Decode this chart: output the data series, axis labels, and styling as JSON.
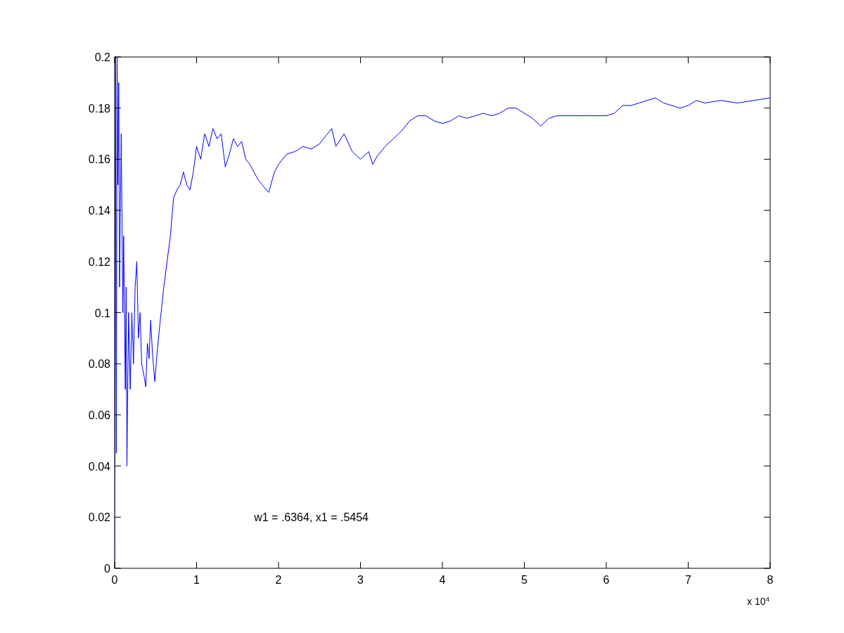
{
  "chart_data": {
    "type": "line",
    "xlim": [
      0,
      8
    ],
    "ylim": [
      0,
      0.2
    ],
    "xticks": [
      0,
      1,
      2,
      3,
      4,
      5,
      6,
      7,
      8
    ],
    "yticks": [
      0,
      0.02,
      0.04,
      0.06,
      0.08,
      0.1,
      0.12,
      0.14,
      0.16,
      0.18,
      0.2
    ],
    "line_style": "solid",
    "annotations": [
      "x 10$^{4}$",
      "w1 = .6364,  x1 = .5454"
    ],
    "series": [
      {
        "color": "#0000ff",
        "x": [
          0,
          0.01,
          0.02,
          0.03,
          0.04,
          0.05,
          0.06,
          0.08,
          0.1,
          0.11,
          0.13,
          0.14,
          0.15,
          0.17,
          0.19,
          0.21,
          0.23,
          0.25,
          0.27,
          0.29,
          0.31,
          0.33,
          0.36,
          0.38,
          0.4,
          0.42,
          0.44,
          0.46,
          0.49,
          0.52,
          0.56,
          0.6,
          0.64,
          0.68,
          0.72,
          0.76,
          0.8,
          0.84,
          0.88,
          0.92,
          0.96,
          1,
          1.05,
          1.1,
          1.15,
          1.2,
          1.25,
          1.3,
          1.35,
          1.4,
          1.45,
          1.5,
          1.55,
          1.6,
          1.65,
          1.7,
          1.75,
          1.8,
          1.88,
          1.95,
          2,
          2.1,
          2.2,
          2.3,
          2.4,
          2.5,
          2.6,
          2.65,
          2.7,
          2.8,
          2.9,
          3,
          3.1,
          3.15,
          3.2,
          3.3,
          3.4,
          3.5,
          3.6,
          3.7,
          3.8,
          3.9,
          4,
          4.1,
          4.2,
          4.3,
          4.4,
          4.5,
          4.6,
          4.7,
          4.8,
          4.9,
          5,
          5.1,
          5.2,
          5.3,
          5.4,
          5.5,
          5.6,
          5.8,
          6,
          6.1,
          6.2,
          6.3,
          6.4,
          6.5,
          6.6,
          6.7,
          6.8,
          6.9,
          7,
          7.1,
          7.2,
          7.4,
          7.6,
          7.8,
          8
        ],
        "values": [
          0,
          0.2,
          0.045,
          0.2,
          0.15,
          0.19,
          0.11,
          0.17,
          0.1,
          0.13,
          0.07,
          0.11,
          0.04,
          0.1,
          0.07,
          0.1,
          0.08,
          0.11,
          0.12,
          0.09,
          0.1,
          0.08,
          0.075,
          0.071,
          0.088,
          0.082,
          0.097,
          0.085,
          0.073,
          0.085,
          0.098,
          0.11,
          0.12,
          0.13,
          0.145,
          0.148,
          0.15,
          0.155,
          0.15,
          0.148,
          0.155,
          0.165,
          0.16,
          0.17,
          0.165,
          0.172,
          0.168,
          0.17,
          0.157,
          0.162,
          0.168,
          0.165,
          0.167,
          0.16,
          0.158,
          0.155,
          0.152,
          0.15,
          0.147,
          0.155,
          0.158,
          0.162,
          0.163,
          0.165,
          0.164,
          0.166,
          0.17,
          0.172,
          0.165,
          0.17,
          0.163,
          0.16,
          0.163,
          0.158,
          0.161,
          0.165,
          0.168,
          0.171,
          0.175,
          0.177,
          0.177,
          0.175,
          0.174,
          0.175,
          0.177,
          0.176,
          0.177,
          0.178,
          0.177,
          0.178,
          0.18,
          0.18,
          0.178,
          0.176,
          0.173,
          0.176,
          0.177,
          0.177,
          0.177,
          0.177,
          0.177,
          0.178,
          0.181,
          0.181,
          0.182,
          0.183,
          0.184,
          0.182,
          0.181,
          0.18,
          0.181,
          0.183,
          0.182,
          0.183,
          0.182,
          0.183,
          0.184
        ]
      }
    ]
  }
}
